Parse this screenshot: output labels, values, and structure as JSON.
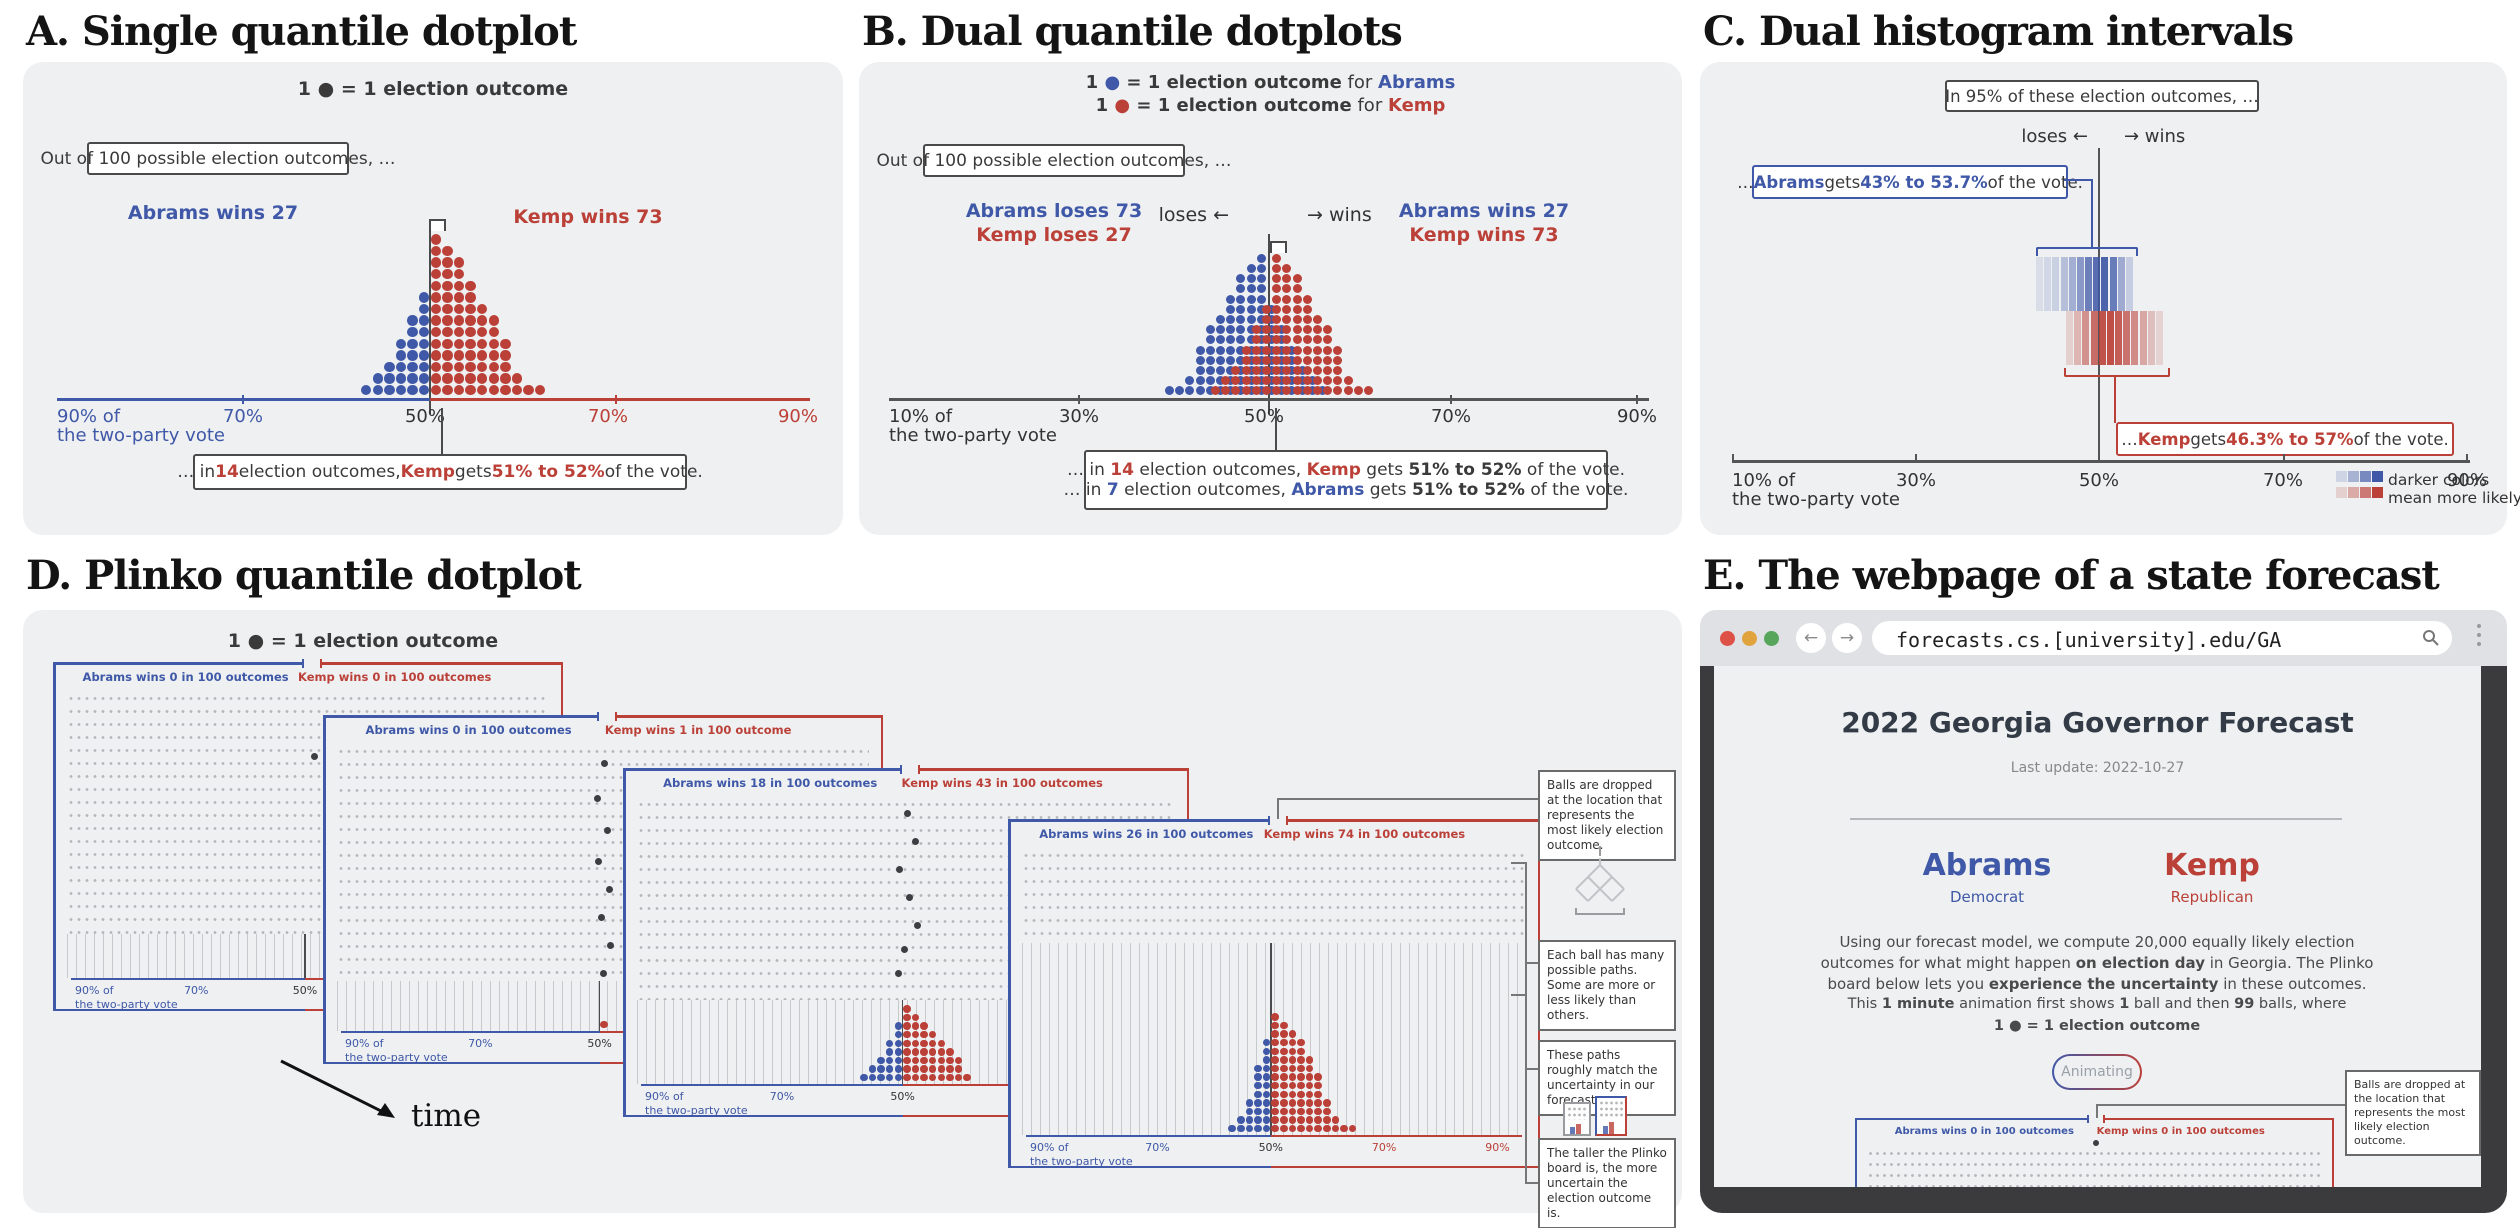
{
  "colors": {
    "blue": "#3f58a7",
    "red": "#bb4038",
    "dark": "#3a3a3a",
    "panel_bg": "#eef0f2",
    "frame": "#3b3b3d",
    "peg": "#b6b7ba",
    "slot": "#c8c9cc",
    "ball": "#3d3d42",
    "light_red": "#dd5147",
    "light_yellow": "#e0a33e",
    "light_green": "#58a55c"
  },
  "panels": {
    "a": {
      "title": "A. Single quantile dotplot",
      "legend": "1 ● = 1 election outcome",
      "hint": "Out of 100 possible election outcomes, …",
      "abrams": "Abrams wins 27",
      "kemp": "Kemp wins 73",
      "ticks": {
        "t90l_1": "90% of",
        "t90l_2": "the two-party vote",
        "t70l": "70%",
        "t50": "50%",
        "t70r": "70%",
        "t90r": "90%"
      },
      "annotation": [
        {
          "t": "… in "
        },
        {
          "t": "14",
          "c": "red",
          "b": true
        },
        {
          "t": " election outcomes, "
        },
        {
          "t": "Kemp",
          "c": "red",
          "b": true
        },
        {
          "t": " gets "
        },
        {
          "t": "51% to 52%",
          "c": "red",
          "b": true
        },
        {
          "t": " of the vote."
        }
      ]
    },
    "b": {
      "title": "B. Dual quantile dotplots",
      "legend1": [
        {
          "t": "1 ",
          "b": true
        },
        {
          "t": "●",
          "c": "blue"
        },
        {
          "t": " = 1 election outcome",
          "b": true
        },
        {
          "t": " for "
        },
        {
          "t": "Abrams",
          "c": "blue",
          "b": true
        }
      ],
      "legend2": [
        {
          "t": "1 ",
          "b": true
        },
        {
          "t": "●",
          "c": "red"
        },
        {
          "t": " = 1 election outcome",
          "b": true
        },
        {
          "t": " for "
        },
        {
          "t": "Kemp",
          "c": "red",
          "b": true
        }
      ],
      "hint": "Out of 100 possible election outcomes, …",
      "left1": "Abrams loses 73",
      "left2": "Kemp loses 27",
      "right1": "Abrams wins 27",
      "right2": "Kemp wins 73",
      "loses": "loses ←",
      "wins": "→ wins",
      "ticks": {
        "t10_1": "10% of",
        "t10_2": "the two-party vote",
        "t30": "30%",
        "t50": "50%",
        "t70": "70%",
        "t90": "90%"
      },
      "annotation1": [
        {
          "t": "… in "
        },
        {
          "t": "14",
          "c": "red",
          "b": true
        },
        {
          "t": " election outcomes, "
        },
        {
          "t": "Kemp",
          "c": "red",
          "b": true
        },
        {
          "t": " gets "
        },
        {
          "t": "51% to 52%",
          "b": true
        },
        {
          "t": " of the vote."
        }
      ],
      "annotation2": [
        {
          "t": "… in "
        },
        {
          "t": "7",
          "c": "blue",
          "b": true
        },
        {
          "t": " election outcomes, "
        },
        {
          "t": "Abrams",
          "c": "blue",
          "b": true
        },
        {
          "t": " gets "
        },
        {
          "t": "51% to 52%",
          "b": true
        },
        {
          "t": " of the vote."
        }
      ]
    },
    "c": {
      "title": "C. Dual histogram intervals",
      "topbox": "In 95% of these election outcomes, …",
      "loses": "loses ←",
      "wins": "→ wins",
      "abrams_box": [
        {
          "t": "… "
        },
        {
          "t": "Abrams",
          "c": "blue",
          "b": true
        },
        {
          "t": " gets "
        },
        {
          "t": "43% to 53.7%",
          "c": "blue",
          "b": true
        },
        {
          "t": " of the vote."
        }
      ],
      "kemp_box": [
        {
          "t": "… "
        },
        {
          "t": "Kemp",
          "c": "red",
          "b": true
        },
        {
          "t": " gets "
        },
        {
          "t": "46.3% to 57%",
          "c": "red",
          "b": true
        },
        {
          "t": " of the vote."
        }
      ],
      "ticks": {
        "t10_1": "10% of",
        "t10_2": "the two-party vote",
        "t30": "30%",
        "t50": "50%",
        "t70": "70%",
        "t90": "90%"
      },
      "note1": "darker colors",
      "note2": "mean more likely"
    },
    "d": {
      "title": "D. Plinko quantile dotplot",
      "legend": "1 ● = 1 election outcome",
      "time": "time",
      "board_ticks": {
        "t90": "90% of",
        "t90b": "the two-party vote",
        "t70": "70%",
        "t50": "50%",
        "t70r": "70%",
        "t90r": "90%"
      },
      "annotations": {
        "drop": "Balls are dropped at the location that represents the most likely election outcome.",
        "paths": "Each ball has many possible paths. Some are more or less likely than others.",
        "match": "These paths roughly match the uncertainty in our forecast.",
        "taller": "The taller the Plinko board is, the more uncertain the election outcome is."
      }
    },
    "e": {
      "title": "E. The webpage of a state forecast",
      "url": "forecasts.cs.[university].edu/GA",
      "heading": "2022 Georgia Governor Forecast",
      "last_update": "Last update: 2022-10-27",
      "abrams": "Abrams",
      "abrams_party": "Democrat",
      "kemp": "Kemp",
      "kemp_party": "Republican",
      "para": [
        {
          "t": "Using our forecast model, we compute 20,000 equally likely election outcomes for what might happen "
        },
        {
          "t": "on election day",
          "b": true
        },
        {
          "t": " in Georgia. The Plinko board below lets you "
        },
        {
          "t": "experience the uncertainty",
          "b": true
        },
        {
          "t": " in these outcomes."
        }
      ],
      "anim1": [
        {
          "t": "This "
        },
        {
          "t": "1 minute",
          "b": true
        },
        {
          "t": " animation first shows "
        },
        {
          "t": "1",
          "b": true
        },
        {
          "t": " ball and then "
        },
        {
          "t": "99",
          "b": true
        },
        {
          "t": " balls, where"
        }
      ],
      "anim2": [
        {
          "t": "1 ● = 1 election outcome",
          "b": true
        }
      ],
      "button": "Animating",
      "board": {
        "abrams_label": "Abrams wins 0 in 100 outcomes",
        "kemp_label": "Kemp wins 0 in 100 outcomes"
      },
      "tooltip": "Balls are dropped at the location that represents the most likely election outcome."
    }
  },
  "chart_data": [
    {
      "id": "A",
      "type": "bar",
      "subtype": "quantile-dotplot",
      "title": "Single quantile dotplot",
      "unit": "1 dot = 1 election outcome",
      "x_axis": "share of the two-party vote",
      "abrams_columns": [
        1,
        2,
        3,
        5,
        7,
        9
      ],
      "kemp_columns": [
        14,
        13,
        12,
        10,
        8,
        7,
        5,
        2,
        1,
        1
      ],
      "abrams_win_outcomes": 27,
      "kemp_win_outcomes": 73,
      "highlight": {
        "bin": "51% to 52%",
        "count": 14
      },
      "x_ticks": [
        "90%",
        "70%",
        "50%",
        "70%",
        "90%"
      ]
    },
    {
      "id": "B",
      "type": "bar",
      "subtype": "dual-quantile-dotplot",
      "series": [
        {
          "name": "Abrams",
          "color_key": "blue",
          "start_bin": -10,
          "dot_counts": [
            1,
            1,
            2,
            5,
            7,
            8,
            10,
            12,
            13,
            14,
            9,
            7,
            5,
            3,
            2,
            1
          ],
          "wins": 27,
          "loses": 73
        },
        {
          "name": "Kemp",
          "color_key": "red",
          "start_bin": -6,
          "dot_counts": [
            1,
            2,
            3,
            5,
            7,
            9,
            14,
            13,
            12,
            10,
            8,
            7,
            5,
            2,
            1,
            1
          ],
          "wins": 73,
          "loses": 27
        }
      ],
      "highlight": {
        "bin": "51% to 52%",
        "kemp_count": 14,
        "abrams_count": 7
      },
      "x_ticks": [
        "10%",
        "30%",
        "50%",
        "70%",
        "90%"
      ]
    },
    {
      "id": "C",
      "type": "area",
      "subtype": "gradient-interval",
      "interval": "95%",
      "series": [
        {
          "name": "Abrams",
          "color_key": "blue",
          "lo_pct": 43,
          "hi_pct": 53.7,
          "density_profile": [
            0.05,
            0.09,
            0.16,
            0.28,
            0.42,
            0.6,
            0.78,
            0.93,
            1,
            0.82,
            0.45,
            0.18
          ]
        },
        {
          "name": "Kemp",
          "color_key": "red",
          "lo_pct": 46.3,
          "hi_pct": 57,
          "density_profile": [
            0.12,
            0.3,
            0.55,
            0.8,
            0.97,
            1,
            0.9,
            0.75,
            0.58,
            0.4,
            0.24,
            0.1
          ]
        }
      ],
      "x_ticks": [
        "10%",
        "30%",
        "50%",
        "70%",
        "90%"
      ],
      "note": "darker colors mean more likely"
    },
    {
      "id": "D",
      "type": "bar",
      "subtype": "plinko-quantile-dotplot-sequence",
      "unit": "1 dot = 1 election outcome",
      "boards": [
        {
          "abrams_label": "Abrams wins 0 in 100 outcomes",
          "kemp_label": "Kemp wins 0 in 100 outcomes",
          "abrams_wins": 0,
          "kemp_wins": 0,
          "blue_cols": [],
          "red_cols": [],
          "trail": [
            [
              0.512,
              0.27
            ]
          ]
        },
        {
          "abrams_label": "Abrams wins 0 in 100 outcomes",
          "kemp_label": "Kemp wins 1 in 100 outcome",
          "abrams_wins": 0,
          "kemp_wins": 1,
          "blue_cols": [],
          "red_cols": [
            1
          ],
          "trail": [
            [
              0.503,
              0.14
            ],
            [
              0.49,
              0.24
            ],
            [
              0.508,
              0.33
            ],
            [
              0.492,
              0.42
            ],
            [
              0.512,
              0.5
            ],
            [
              0.497,
              0.58
            ],
            [
              0.514,
              0.66
            ],
            [
              0.5,
              0.74
            ]
          ]
        },
        {
          "abrams_label": "Abrams wins 18 in 100 outcomes",
          "kemp_label": "Kemp wins 43 in 100 outcomes",
          "abrams_wins": 18,
          "kemp_wins": 43,
          "blue_cols": [
            1,
            2,
            3,
            5,
            7
          ],
          "red_cols": [
            9,
            8,
            7,
            6,
            5,
            4,
            3,
            1
          ],
          "trail": [
            [
              0.502,
              0.13
            ],
            [
              0.516,
              0.21
            ],
            [
              0.488,
              0.29
            ],
            [
              0.506,
              0.37
            ],
            [
              0.52,
              0.45
            ],
            [
              0.498,
              0.52
            ],
            [
              0.486,
              0.59
            ]
          ]
        },
        {
          "abrams_label": "Abrams wins 26 in 100 outcomes",
          "kemp_label": "Kemp wins 74 in 100 outcomes",
          "abrams_wins": 26,
          "kemp_wins": 74,
          "blue_cols": [
            1,
            2,
            4,
            8,
            11
          ],
          "red_cols": [
            14,
            13,
            12,
            11,
            9,
            7,
            4,
            2,
            1,
            1
          ],
          "trail": []
        }
      ]
    }
  ]
}
